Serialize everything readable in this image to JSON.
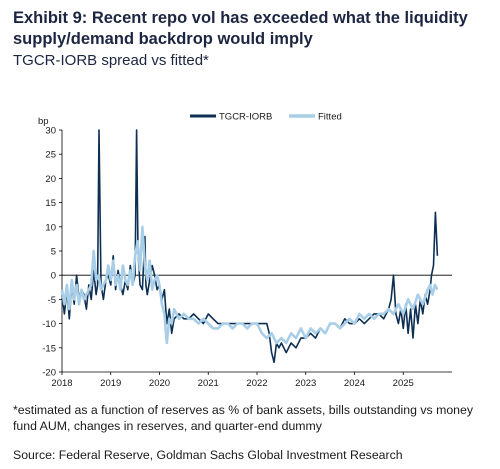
{
  "title": "Exhibit 9: Recent repo vol has exceeded what the liquidity supply/demand backdrop would imply",
  "subtitle": "TGCR-IORB spread vs fitted*",
  "footnote": "*estimated as a function of reserves as % of bank assets, bills outstanding vs money fund AUM, changes in reserves, and quarter-end dummy",
  "source": "Source: Federal Reserve, Goldman Sachs Global Investment Research",
  "colors": {
    "tgcr": "#0d2f52",
    "fitted": "#a9cfe8",
    "title": "#1c2541"
  },
  "chart_data": {
    "type": "line",
    "ylabel": "bp",
    "ylim": [
      -20,
      30
    ],
    "yticks": [
      30,
      25,
      20,
      15,
      10,
      5,
      0,
      -5,
      -10,
      -15,
      -20
    ],
    "xlim": [
      2018,
      2026
    ],
    "xticks": [
      "2018",
      "2019",
      "2020",
      "2021",
      "2022",
      "2023",
      "2024",
      "2025"
    ],
    "grid": false,
    "legend_position": "top-right",
    "series": [
      {
        "name": "TGCR-IORB",
        "x": [
          2018.0,
          2018.05,
          2018.1,
          2018.15,
          2018.2,
          2018.25,
          2018.3,
          2018.35,
          2018.4,
          2018.45,
          2018.5,
          2018.55,
          2018.6,
          2018.65,
          2018.7,
          2018.73,
          2018.76,
          2018.8,
          2018.85,
          2018.9,
          2018.95,
          2019.0,
          2019.05,
          2019.1,
          2019.15,
          2019.2,
          2019.25,
          2019.3,
          2019.35,
          2019.4,
          2019.45,
          2019.5,
          2019.53,
          2019.56,
          2019.6,
          2019.65,
          2019.7,
          2019.72,
          2019.75,
          2019.8,
          2019.85,
          2019.9,
          2019.95,
          2020.0,
          2020.05,
          2020.1,
          2020.15,
          2020.2,
          2020.25,
          2020.3,
          2020.4,
          2020.5,
          2020.6,
          2020.7,
          2020.8,
          2020.9,
          2021.0,
          2021.1,
          2021.2,
          2021.3,
          2021.4,
          2021.5,
          2021.6,
          2021.7,
          2021.8,
          2021.9,
          2022.0,
          2022.1,
          2022.2,
          2022.25,
          2022.3,
          2022.35,
          2022.4,
          2022.45,
          2022.5,
          2022.6,
          2022.7,
          2022.8,
          2022.9,
          2023.0,
          2023.1,
          2023.2,
          2023.3,
          2023.4,
          2023.5,
          2023.6,
          2023.7,
          2023.8,
          2023.9,
          2024.0,
          2024.1,
          2024.2,
          2024.3,
          2024.4,
          2024.5,
          2024.6,
          2024.7,
          2024.75,
          2024.8,
          2024.85,
          2024.9,
          2024.95,
          2025.0,
          2025.05,
          2025.1,
          2025.15,
          2025.2,
          2025.25,
          2025.3,
          2025.35,
          2025.4,
          2025.45,
          2025.5,
          2025.55,
          2025.58,
          2025.62,
          2025.66,
          2025.7
        ],
        "y": [
          -4,
          -8,
          -3,
          -9,
          -2,
          -6,
          0,
          -5,
          -3,
          -4,
          -7,
          -2,
          -5,
          1,
          -4,
          -2,
          30,
          -2,
          -5,
          -1,
          0,
          -2,
          4,
          -3,
          1,
          -2,
          -4,
          -1,
          -3,
          2,
          -2,
          0,
          30,
          5,
          -2,
          -3,
          8,
          -2,
          -4,
          -1,
          2,
          0,
          -3,
          -2,
          -5,
          -3,
          -10,
          -7,
          -12,
          -9,
          -8,
          -9,
          -9,
          -8,
          -9,
          -10,
          -8,
          -9,
          -10,
          -10,
          -10,
          -10,
          -10,
          -10,
          -10,
          -10,
          -10,
          -10,
          -10,
          -12,
          -16,
          -18,
          -14,
          -15,
          -14,
          -16,
          -14,
          -15,
          -13,
          -13,
          -12,
          -13,
          -11,
          -12,
          -10,
          -10,
          -11,
          -9,
          -10,
          -10,
          -9,
          -10,
          -9,
          -8,
          -8,
          -9,
          -7,
          -5,
          0,
          -8,
          -10,
          -7,
          -11,
          -6,
          -12,
          -7,
          -13,
          -6,
          -10,
          -5,
          -8,
          -4,
          -6,
          -3,
          0,
          2,
          13,
          4
        ]
      },
      {
        "name": "Fitted",
        "x": [
          2018.0,
          2018.05,
          2018.1,
          2018.15,
          2018.2,
          2018.25,
          2018.3,
          2018.35,
          2018.4,
          2018.45,
          2018.5,
          2018.55,
          2018.6,
          2018.65,
          2018.7,
          2018.75,
          2018.8,
          2018.85,
          2018.9,
          2018.95,
          2019.0,
          2019.05,
          2019.1,
          2019.15,
          2019.2,
          2019.25,
          2019.3,
          2019.35,
          2019.4,
          2019.45,
          2019.5,
          2019.55,
          2019.6,
          2019.65,
          2019.7,
          2019.75,
          2019.8,
          2019.85,
          2019.9,
          2019.95,
          2020.0,
          2020.05,
          2020.1,
          2020.15,
          2020.2,
          2020.25,
          2020.3,
          2020.4,
          2020.5,
          2020.6,
          2020.7,
          2020.8,
          2020.9,
          2021.0,
          2021.1,
          2021.2,
          2021.3,
          2021.4,
          2021.5,
          2021.6,
          2021.7,
          2021.8,
          2021.9,
          2022.0,
          2022.1,
          2022.2,
          2022.3,
          2022.4,
          2022.5,
          2022.6,
          2022.7,
          2022.8,
          2022.9,
          2023.0,
          2023.1,
          2023.2,
          2023.3,
          2023.4,
          2023.5,
          2023.6,
          2023.7,
          2023.8,
          2023.9,
          2024.0,
          2024.1,
          2024.2,
          2024.3,
          2024.4,
          2024.5,
          2024.6,
          2024.7,
          2024.8,
          2024.9,
          2025.0,
          2025.1,
          2025.2,
          2025.3,
          2025.4,
          2025.5,
          2025.55,
          2025.6,
          2025.65,
          2025.7
        ],
        "y": [
          -3,
          -6,
          -2,
          -7,
          -1,
          -5,
          -2,
          -6,
          -3,
          -5,
          -4,
          -3,
          -2,
          5,
          -1,
          0,
          -3,
          -2,
          -1,
          2,
          -1,
          3,
          -2,
          0,
          -3,
          2,
          -1,
          -2,
          1,
          -2,
          4,
          7,
          1,
          10,
          2,
          -1,
          3,
          -3,
          -1,
          0,
          -2,
          -6,
          -8,
          -14,
          -9,
          -10,
          -7,
          -9,
          -8,
          -9,
          -9,
          -10,
          -9,
          -10,
          -11,
          -11,
          -10,
          -10,
          -11,
          -10,
          -10,
          -11,
          -10,
          -10,
          -12,
          -13,
          -12,
          -14,
          -13,
          -14,
          -12,
          -13,
          -11,
          -13,
          -11,
          -12,
          -11,
          -12,
          -10,
          -10,
          -11,
          -10,
          -9,
          -10,
          -8,
          -9,
          -8,
          -9,
          -8,
          -8,
          -7,
          -8,
          -6,
          -8,
          -5,
          -7,
          -4,
          -6,
          -3,
          -2,
          -4,
          -2,
          -3
        ]
      }
    ]
  }
}
